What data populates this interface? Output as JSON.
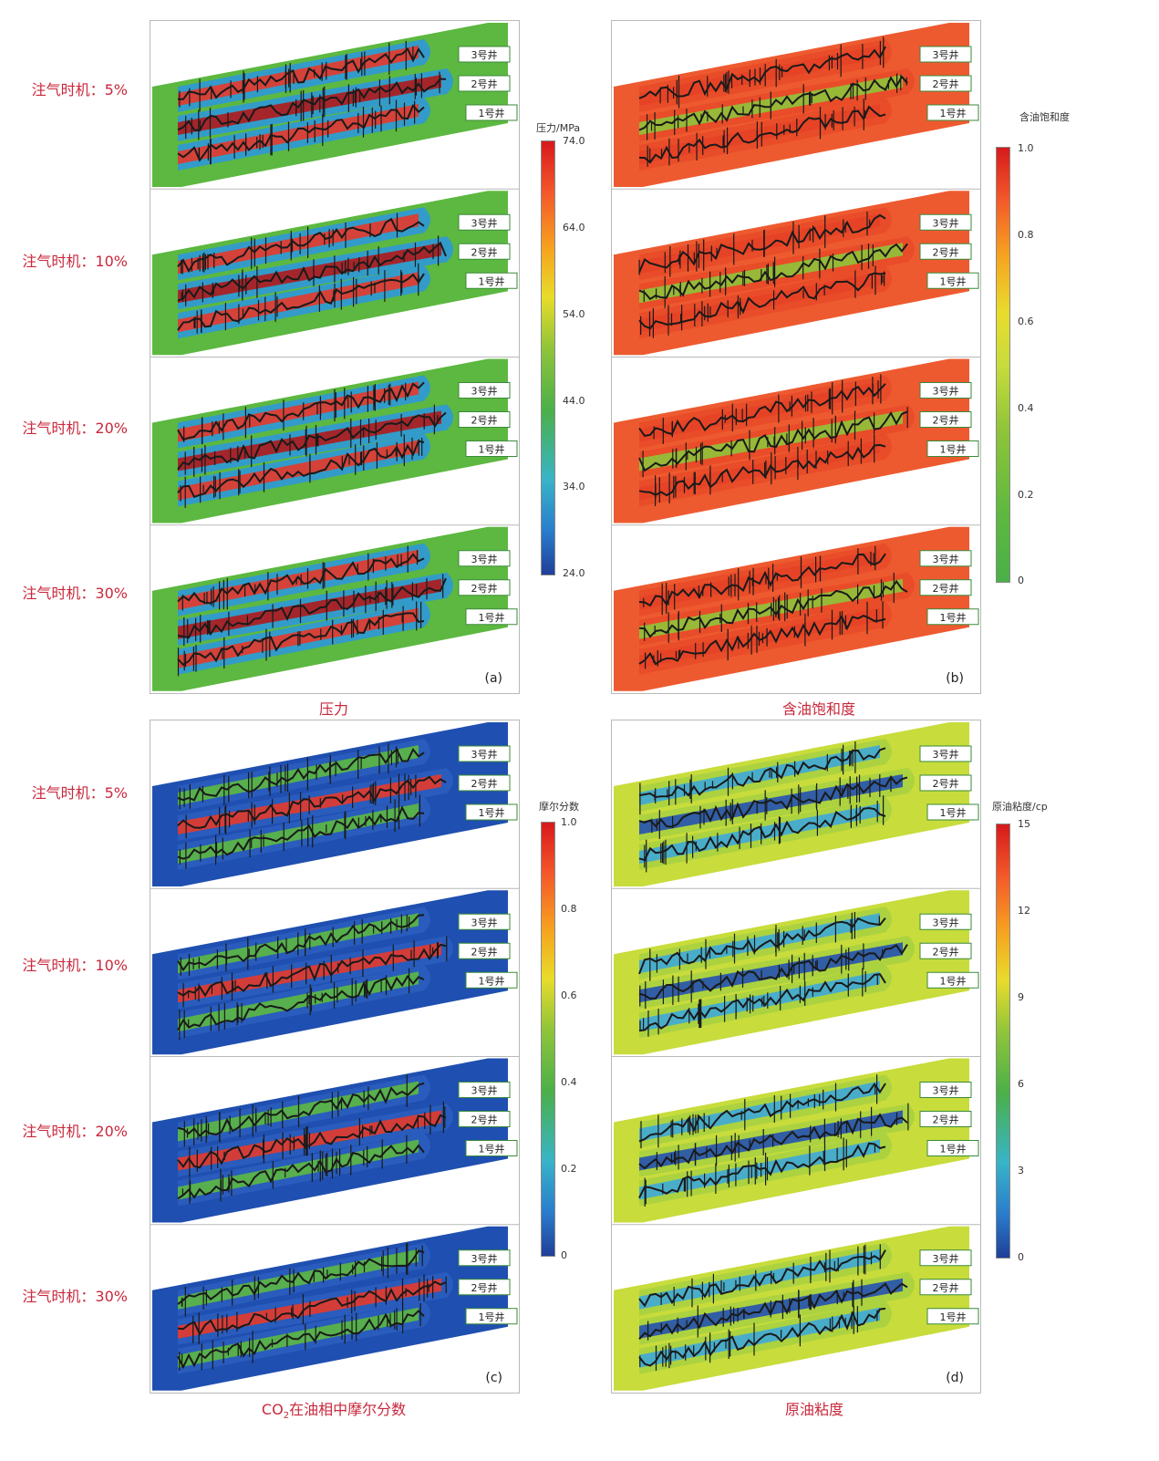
{
  "row_labels": [
    "注气时机：5%",
    "注气时机：10%",
    "注气时机：20%",
    "注气时机：30%"
  ],
  "well_labels": [
    "3号井",
    "2号井",
    "1号井"
  ],
  "panels": [
    {
      "letter": "(a)",
      "caption_text": "压力",
      "colorbar": {
        "title": "压力/MPa",
        "ticks": [
          "74.0",
          "64.0",
          "54.0",
          "44.0",
          "34.0",
          "24.0"
        ]
      },
      "colors": {
        "background": "#5cb840",
        "band_outer": "#2f98d8",
        "band_inner": "#e6392a",
        "band_core": "#b01a1a",
        "dark": "#1a1a1a"
      }
    },
    {
      "letter": "(b)",
      "caption_text": "含油饱和度",
      "colorbar": {
        "title": "含油饱和度",
        "ticks": [
          "1.0",
          "0.8",
          "0.6",
          "0.4",
          "0.2",
          "0"
        ]
      },
      "colors": {
        "background": "#ee5a30",
        "band_outer": "#e84a28",
        "band_inner": "#e64326",
        "band_core": "#8fc43a",
        "dark": "#1a1a1a"
      }
    },
    {
      "letter": "(c)",
      "caption_prefix": "CO",
      "caption_sub": "2",
      "caption_suffix": "在油相中摩尔分数",
      "colorbar": {
        "title": "摩尔分数",
        "ticks": [
          "1.0",
          "0.8",
          "0.6",
          "0.4",
          "0.2",
          "0"
        ]
      },
      "colors": {
        "background": "#1f4fb0",
        "band_outer": "#2a5dbe",
        "band_inner": "#5cb840",
        "band_core": "#e63a2a",
        "dark": "#1a1a1a"
      }
    },
    {
      "letter": "(d)",
      "caption_text": "原油粘度",
      "colorbar": {
        "title": "原油粘度/cp",
        "ticks": [
          "15",
          "12",
          "9",
          "6",
          "3",
          "0"
        ]
      },
      "colors": {
        "background": "#c8dc3c",
        "band_outer": "#a9d040",
        "band_inner": "#3ea8d8",
        "band_core": "#2451b0",
        "dark": "#1a1a1a"
      }
    }
  ]
}
